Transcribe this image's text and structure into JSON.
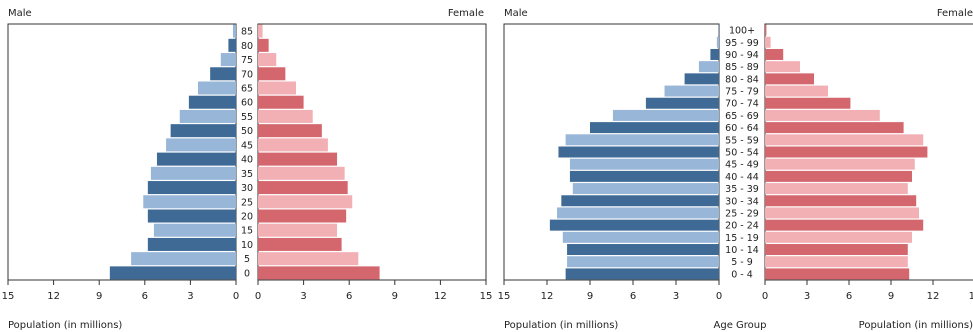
{
  "chart_data": [
    {
      "type": "bar",
      "orientation": "horizontal",
      "side_labels": {
        "left": "Male",
        "right": "Female"
      },
      "x_ticks_left": [
        "15",
        "12",
        "9",
        "6",
        "3",
        "0"
      ],
      "x_ticks_right": [
        "0",
        "3",
        "6",
        "9",
        "12",
        "15"
      ],
      "x_label_left": "Population (in millions)",
      "x_label_right": "",
      "center_label": "",
      "xlim": [
        0,
        15
      ],
      "categories": [
        "0",
        "5",
        "10",
        "15",
        "20",
        "25",
        "30",
        "35",
        "40",
        "45",
        "50",
        "55",
        "60",
        "65",
        "70",
        "75",
        "80",
        "85"
      ],
      "series": [
        {
          "name": "Male",
          "values": [
            8.3,
            6.9,
            5.8,
            5.4,
            5.8,
            6.1,
            5.8,
            5.6,
            5.2,
            4.6,
            4.3,
            3.7,
            3.1,
            2.5,
            1.7,
            1.0,
            0.5,
            0.2
          ]
        },
        {
          "name": "Female",
          "values": [
            8.0,
            6.6,
            5.5,
            5.2,
            5.8,
            6.2,
            5.9,
            5.7,
            5.2,
            4.6,
            4.2,
            3.6,
            3.0,
            2.5,
            1.8,
            1.2,
            0.7,
            0.3
          ]
        }
      ]
    },
    {
      "type": "bar",
      "orientation": "horizontal",
      "side_labels": {
        "left": "Male",
        "right": "Female"
      },
      "x_ticks_left": [
        "15",
        "12",
        "9",
        "6",
        "3",
        "0"
      ],
      "x_ticks_right": [
        "0",
        "3",
        "6",
        "9",
        "12",
        "15"
      ],
      "x_label_left": "Population (in millions)",
      "x_label_right": "Population (in millions)",
      "center_label": "Age Group",
      "xlim": [
        0,
        15
      ],
      "categories": [
        "0 - 4",
        "5 - 9",
        "10 - 14",
        "15 - 19",
        "20 - 24",
        "25 - 29",
        "30 - 34",
        "35 - 39",
        "40 - 44",
        "45 - 49",
        "50 - 54",
        "55 - 59",
        "60 - 64",
        "65 - 69",
        "70 - 74",
        "75 - 79",
        "80 - 84",
        "85 - 89",
        "90 - 94",
        "95 - 99",
        "100+"
      ],
      "series": [
        {
          "name": "Male",
          "values": [
            10.7,
            10.6,
            10.6,
            10.9,
            11.8,
            11.3,
            11.0,
            10.2,
            10.4,
            10.4,
            11.2,
            10.7,
            9.0,
            7.4,
            5.1,
            3.8,
            2.4,
            1.4,
            0.6,
            0.15,
            0.03
          ]
        },
        {
          "name": "Female",
          "values": [
            10.3,
            10.2,
            10.2,
            10.5,
            11.3,
            11.0,
            10.8,
            10.2,
            10.5,
            10.7,
            11.6,
            11.3,
            9.9,
            8.2,
            6.1,
            4.5,
            3.5,
            2.5,
            1.3,
            0.4,
            0.1
          ]
        }
      ]
    }
  ],
  "colors": {
    "male_dark": "#3f6a96",
    "male_light": "#98b6d8",
    "female_dark": "#d4676d",
    "female_light": "#f2b0b5"
  }
}
